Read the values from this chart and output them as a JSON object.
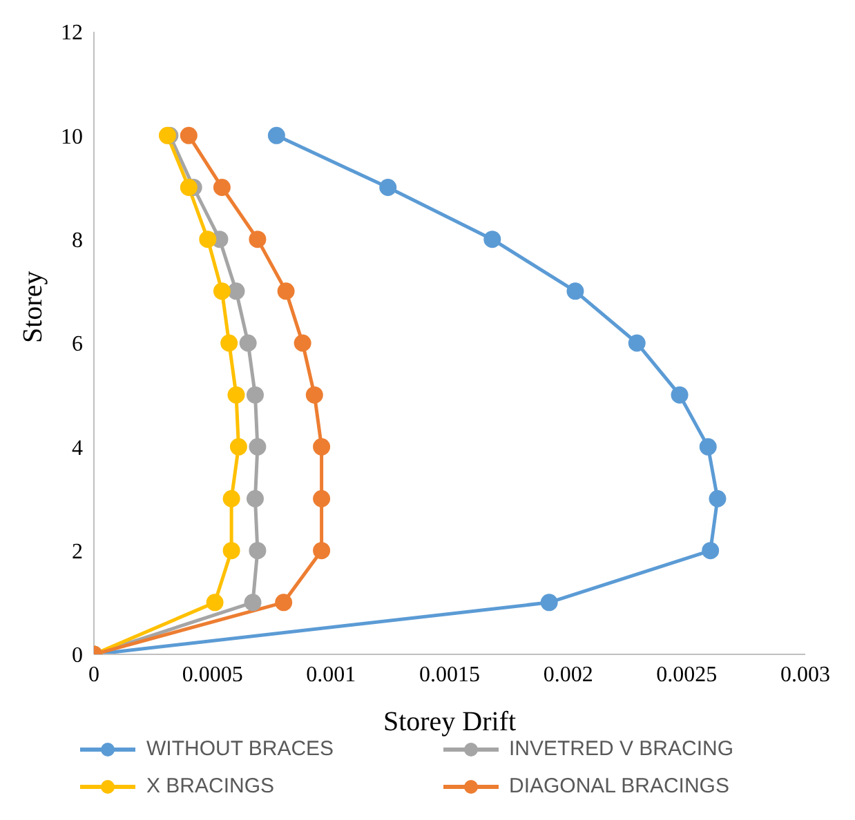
{
  "chart_data": {
    "type": "line",
    "xlabel": "Storey Drift",
    "ylabel": "Storey",
    "xlim": [
      0,
      0.003
    ],
    "xticks": [
      0,
      0.0005,
      0.001,
      0.0015,
      0.002,
      0.0025,
      0.003
    ],
    "ylim": [
      0,
      12
    ],
    "yticks": [
      0,
      2,
      4,
      6,
      8,
      10,
      12
    ],
    "grid": false,
    "legend": "bottom",
    "marker": "circle",
    "line_style": "solid",
    "series": [
      {
        "name": "WITHOUT BRACES",
        "color": "#5b9bd5",
        "x": [
          0,
          0.00192,
          0.0026,
          0.00263,
          0.00259,
          0.00247,
          0.00229,
          0.00203,
          0.00168,
          0.00124,
          0.00077
        ],
        "values": [
          0,
          1,
          2,
          3,
          4,
          5,
          6,
          7,
          8,
          9,
          10
        ]
      },
      {
        "name": "INVETRED V BRACING",
        "color": "#a5a5a5",
        "x": [
          0,
          0.00067,
          0.00069,
          0.00068,
          0.00069,
          0.00068,
          0.00065,
          0.0006,
          0.00053,
          0.00042,
          0.00032
        ],
        "values": [
          0,
          1,
          2,
          3,
          4,
          5,
          6,
          7,
          8,
          9,
          10
        ]
      },
      {
        "name": "X BRACINGS",
        "color": "#ffc000",
        "x": [
          0,
          0.00051,
          0.00058,
          0.00058,
          0.00061,
          0.0006,
          0.00057,
          0.00054,
          0.00048,
          0.0004,
          0.00031
        ],
        "values": [
          0,
          1,
          2,
          3,
          4,
          5,
          6,
          7,
          8,
          9,
          10
        ]
      },
      {
        "name": "DIAGONAL BRACINGS",
        "color": "#ed7d31",
        "x": [
          0,
          0.0008,
          0.00096,
          0.00096,
          0.00096,
          0.00093,
          0.00088,
          0.00081,
          0.00069,
          0.00054,
          0.0004
        ],
        "values": [
          0,
          1,
          2,
          3,
          4,
          5,
          6,
          7,
          8,
          9,
          10
        ]
      }
    ]
  }
}
